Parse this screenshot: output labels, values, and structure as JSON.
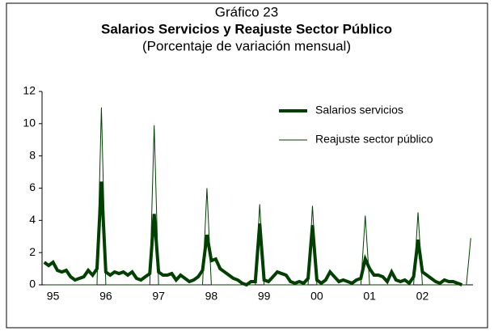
{
  "chart_data": {
    "type": "line",
    "title": "Gráfico 23",
    "subtitle": "Salarios Servicios y Reajuste Sector Público",
    "note": "(Porcentaje de variación mensual)",
    "categories": [
      null,
      null,
      "95",
      null,
      null,
      null,
      null,
      null,
      null,
      null,
      null,
      null,
      null,
      null,
      "96",
      null,
      null,
      null,
      null,
      null,
      null,
      null,
      null,
      null,
      null,
      null,
      "97",
      null,
      null,
      null,
      null,
      null,
      null,
      null,
      null,
      null,
      null,
      null,
      "98",
      null,
      null,
      null,
      null,
      null,
      null,
      null,
      null,
      null,
      null,
      null,
      "99",
      null,
      null,
      null,
      null,
      null,
      null,
      null,
      null,
      null,
      null,
      null,
      "00",
      null,
      null,
      null,
      null,
      null,
      null,
      null,
      null,
      null,
      null,
      null,
      "01",
      null,
      null,
      null,
      null,
      null,
      null,
      null,
      null,
      null,
      null,
      null,
      "02",
      null,
      null,
      null,
      null,
      null,
      null,
      null,
      null,
      null,
      null,
      null
    ],
    "series": [
      {
        "name": "Salarios servicios",
        "color": "#004000",
        "width": 4,
        "values": [
          1.4,
          1.2,
          1.4,
          0.9,
          0.8,
          0.9,
          0.5,
          0.3,
          0.4,
          0.5,
          0.9,
          0.6,
          1.0,
          6.4,
          0.8,
          0.6,
          0.8,
          0.7,
          0.8,
          0.6,
          0.8,
          0.4,
          0.3,
          0.5,
          0.7,
          4.4,
          0.8,
          0.6,
          0.6,
          0.7,
          0.3,
          0.6,
          0.4,
          0.2,
          0.3,
          0.5,
          0.9,
          3.1,
          1.5,
          1.6,
          1.0,
          0.8,
          0.6,
          0.4,
          0.3,
          0.1,
          0.0,
          0.2,
          0.2,
          3.8,
          0.3,
          0.2,
          0.5,
          0.8,
          0.7,
          0.6,
          0.2,
          0.1,
          0.2,
          0.1,
          0.4,
          3.7,
          0.3,
          0.1,
          0.3,
          0.8,
          0.5,
          0.2,
          0.3,
          0.2,
          0.1,
          0.3,
          0.4,
          1.6,
          1.0,
          0.6,
          0.6,
          0.5,
          0.2,
          0.8,
          0.3,
          0.2,
          0.3,
          0.1,
          0.5,
          2.8,
          0.8,
          0.6,
          0.4,
          0.2,
          0.1,
          0.3,
          0.2,
          0.2,
          0.1,
          0.0,
          null,
          null
        ]
      },
      {
        "name": "Reajuste sector público",
        "color": "#004000",
        "width": 1,
        "values": [
          0,
          0,
          0,
          0,
          0,
          0,
          0,
          0,
          0,
          0,
          0,
          0,
          0,
          11.0,
          0,
          0,
          0,
          0,
          0,
          0,
          0,
          0,
          0,
          0,
          0,
          9.9,
          0,
          0,
          0,
          0,
          0,
          0,
          0,
          0,
          0,
          0,
          0,
          6.0,
          0,
          0,
          0,
          0,
          0,
          0,
          0,
          0,
          0,
          0,
          0,
          5.0,
          0,
          0,
          0,
          0,
          0,
          0,
          0,
          0,
          0,
          0,
          0,
          4.9,
          0,
          0,
          0,
          0,
          0,
          0,
          0,
          0,
          0,
          0,
          0,
          4.3,
          0,
          0,
          0,
          0,
          0,
          0,
          0,
          0,
          0,
          0,
          0,
          4.5,
          0,
          0,
          0,
          0,
          0,
          0,
          0,
          0,
          0,
          0,
          0,
          2.9
        ]
      }
    ],
    "ylim": [
      0,
      12
    ],
    "yticks": [
      0,
      2,
      4,
      6,
      8,
      10,
      12
    ],
    "legend": "top-right"
  }
}
